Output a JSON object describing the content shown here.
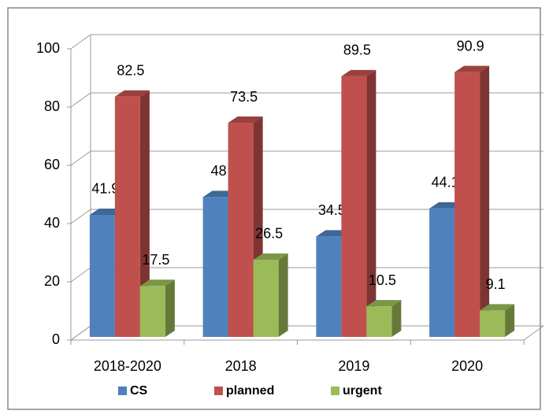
{
  "chart_data": {
    "type": "bar3d",
    "categories": [
      "2018-2020",
      "2018",
      "2019",
      "2020"
    ],
    "series": [
      {
        "name": "CS",
        "color": "#4f81bd",
        "values": [
          41.9,
          48,
          34.5,
          44.1
        ]
      },
      {
        "name": "planned",
        "color": "#c0504d",
        "values": [
          82.5,
          73.5,
          89.5,
          90.9
        ]
      },
      {
        "name": "urgent",
        "color": "#9bbb59",
        "values": [
          17.5,
          26.5,
          10.5,
          9.1
        ]
      }
    ],
    "ylim": [
      0,
      100
    ],
    "yticks": [
      0,
      20,
      40,
      60,
      80,
      100
    ],
    "grid": true,
    "legend": "bottom"
  }
}
